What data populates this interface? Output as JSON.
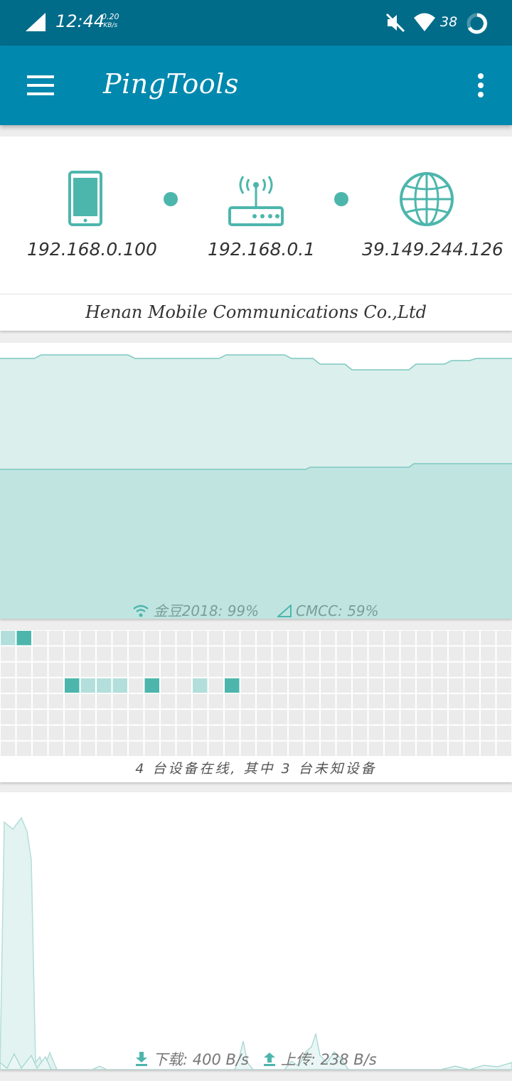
{
  "status_bar": {
    "time": "12:44",
    "net_speed_value": "0.20",
    "net_speed_unit": "KB/s",
    "battery": "38",
    "icons": [
      "signal-icon",
      "mute-icon",
      "wifi-icon",
      "battery-ring-icon"
    ]
  },
  "app_bar": {
    "title": "PingTools",
    "menu_icon": "hamburger-menu-icon",
    "overflow_icon": "more-vert-icon"
  },
  "network_path": {
    "nodes": [
      {
        "icon": "phone-icon",
        "ip": "192.168.0.100"
      },
      {
        "icon": "router-icon",
        "ip": "192.168.0.1"
      },
      {
        "icon": "globe-icon",
        "ip": "39.149.244.126"
      }
    ],
    "isp": "Henan Mobile Communications Co.,Ltd"
  },
  "signal_chart": {
    "legend": [
      {
        "icon": "wifi-icon",
        "text": "金豆2018: 99%"
      },
      {
        "icon": "cell-signal-icon",
        "text": "CMCC: 59%"
      }
    ],
    "colors": {
      "wifi_fill": "#dbefed",
      "cell_fill": "#c0e5e1",
      "line": "#7cc8c0"
    }
  },
  "device_grid": {
    "cols": 32,
    "rows": 8,
    "caption": "4 台设备在线, 其中 3 台未知设备",
    "colors": {
      "empty": "#ebebeb",
      "dark": "#4db6ac",
      "light": "#b2dfdb"
    }
  },
  "traffic": {
    "download": "下载: 400 B/s",
    "upload": "上传: 238 B/s",
    "download_icon": "download-arrow-icon",
    "upload_icon": "upload-arrow-icon"
  }
}
